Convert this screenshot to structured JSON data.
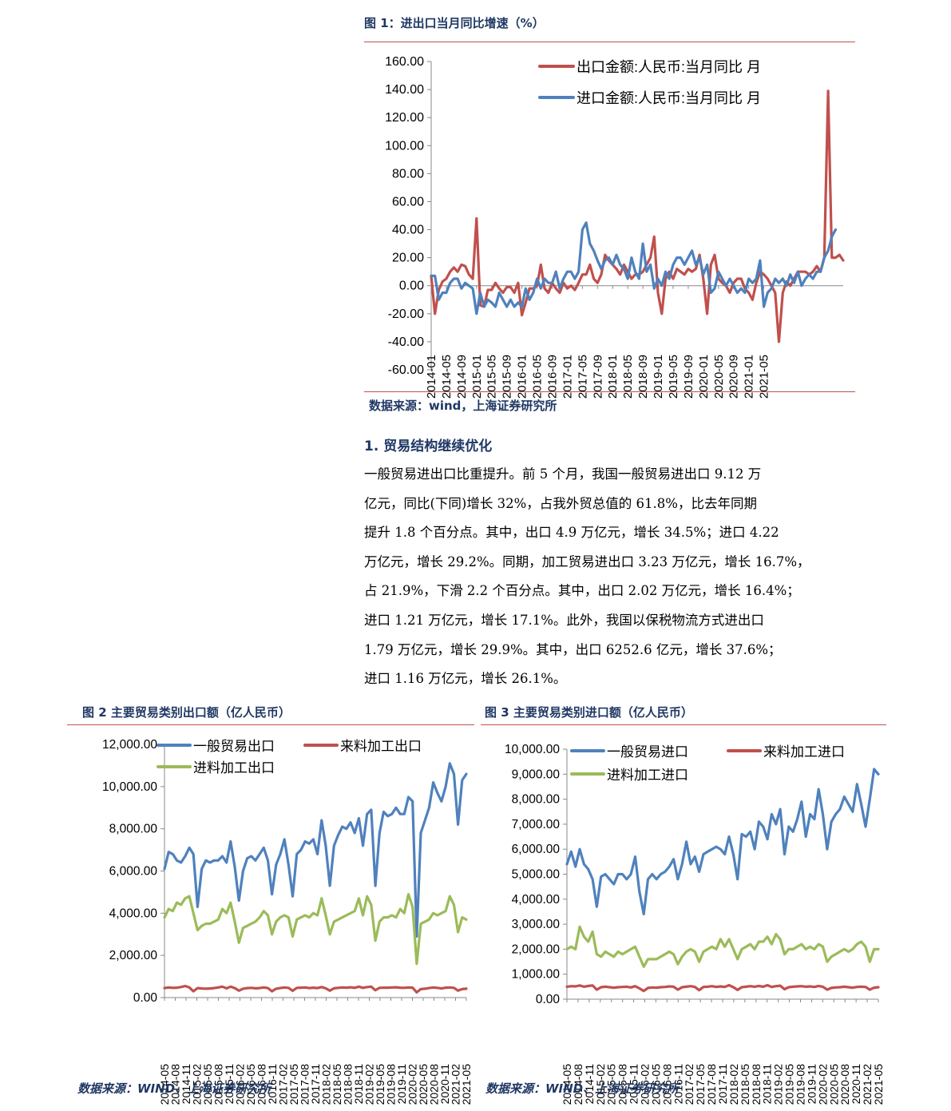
{
  "figure1": {
    "title": "图 1：进出口当月同比增速（%）",
    "source": "数据来源：wind，上海证券研究所"
  },
  "section": {
    "heading": "1. 贸易结构继续优化",
    "paragraph_lines": [
      "一般贸易进出口比重提升。前 5 个月，我国一般贸易进出口 9.12 万",
      "亿元，同比(下同)增长 32%，占我外贸总值的 61.8%，比去年同期",
      "提升 1.8 个百分点。其中，出口 4.9 万亿元，增长 34.5%；进口 4.22",
      "万亿元，增长 29.2%。同期，加工贸易进出口 3.23 万亿元，增长 16.7%，",
      "占 21.9%，下滑 2.2 个百分点。其中，出口 2.02 万亿元，增长 16.4%；",
      "进口 1.21 万亿元，增长 17.1%。此外，我国以保税物流方式进出口",
      "1.79 万亿元，增长 29.9%。其中，出口 6252.6 亿元，增长 37.6%；",
      "进口 1.16 万亿元，增长 26.1%。"
    ]
  },
  "figure2": {
    "title": "图 2 主要贸易类别出口额（亿人民币）",
    "source": "数据来源：WIND、上海证券研究所"
  },
  "figure3": {
    "title": "图 3 主要贸易类别进口额（亿人民币）",
    "source": "数据来源：WIND、上海证券研究所"
  },
  "chart_data": [
    {
      "id": "fig1",
      "type": "line",
      "ylim": [
        -60,
        160
      ],
      "y_ticks": [
        "160.00",
        "140.00",
        "120.00",
        "100.00",
        "80.00",
        "60.00",
        "40.00",
        "20.00",
        "0.00",
        "-20.00",
        "-40.00",
        "-60.00"
      ],
      "x_tick_labels": [
        "2014-01",
        "2014-05",
        "2014-09",
        "2015-01",
        "2015-05",
        "2015-09",
        "2016-01",
        "2016-05",
        "2016-09",
        "2017-01",
        "2017-05",
        "2017-09",
        "2018-01",
        "2018-05",
        "2018-09",
        "2019-01",
        "2019-05",
        "2019-09",
        "2020-01",
        "2020-05",
        "2020-09",
        "2021-01",
        "2021-05"
      ],
      "x_start": "2014-01",
      "legend_position": "top-right",
      "series": [
        {
          "name": "出口金额:人民币:当月同比 月",
          "color": "#c0504d",
          "values": [
            7,
            -20,
            -3,
            3,
            5,
            10,
            13,
            10,
            15,
            14,
            8,
            5,
            48,
            -14,
            -15,
            -3,
            -3,
            2,
            -2,
            -5,
            -1,
            -1,
            -5,
            2,
            -21,
            -12,
            -2,
            -2,
            0,
            15,
            -2,
            -5,
            2,
            -2,
            -5,
            2,
            -2,
            0,
            -3,
            2,
            8,
            8,
            15,
            5,
            2,
            8,
            22,
            18,
            15,
            12,
            8,
            15,
            10,
            5,
            8,
            8,
            10,
            15,
            20,
            35,
            -5,
            -20,
            5,
            10,
            5,
            12,
            10,
            8,
            12,
            10,
            12,
            22,
            5,
            -20,
            15,
            22,
            5,
            2,
            0,
            -5,
            2,
            5,
            5,
            -2,
            -5,
            -10,
            2,
            10,
            8,
            5,
            0,
            -5,
            -40,
            -5,
            3,
            0,
            5,
            10,
            10,
            10,
            8,
            10,
            14,
            10,
            20,
            139,
            20,
            20,
            22,
            18
          ]
        },
        {
          "name": "进口金额:人民币:当月同比 月",
          "color": "#4f81bd",
          "values": [
            7,
            7,
            -10,
            -5,
            -5,
            2,
            5,
            5,
            -2,
            2,
            0,
            -2,
            -20,
            -5,
            -15,
            -10,
            -12,
            -15,
            -5,
            -10,
            -15,
            -10,
            -15,
            -12,
            -15,
            -2,
            -10,
            -5,
            5,
            -2,
            5,
            2,
            2,
            10,
            -2,
            5,
            10,
            10,
            5,
            10,
            40,
            45,
            30,
            25,
            18,
            12,
            18,
            20,
            15,
            22,
            15,
            12,
            5,
            20,
            10,
            5,
            30,
            10,
            15,
            -2,
            5,
            0,
            10,
            5,
            15,
            20,
            20,
            15,
            20,
            25,
            15,
            20,
            8,
            15,
            -5,
            -2,
            10,
            5,
            0,
            5,
            0,
            -5,
            -2,
            -5,
            5,
            2,
            5,
            18,
            -15,
            -5,
            -2,
            5,
            2,
            5,
            0,
            8,
            2,
            10,
            0,
            5,
            8,
            5,
            10,
            10,
            20,
            25,
            35,
            40
          ]
        }
      ]
    },
    {
      "id": "fig2",
      "type": "line",
      "ylim": [
        0,
        12000
      ],
      "y_ticks": [
        "12,000.00",
        "10,000.00",
        "8,000.00",
        "6,000.00",
        "4,000.00",
        "2,000.00",
        "0.00"
      ],
      "x_tick_labels": [
        "2014-05",
        "2014-08",
        "2014-11",
        "2015-02",
        "2015-05",
        "2015-08",
        "2015-11",
        "2016-02",
        "2016-05",
        "2016-08",
        "2016-11",
        "2017-02",
        "2017-05",
        "2017-08",
        "2017-11",
        "2018-02",
        "2018-05",
        "2018-08",
        "2018-11",
        "2019-02",
        "2019-05",
        "2019-08",
        "2019-11",
        "2020-02",
        "2020-05",
        "2020-08",
        "2020-11",
        "2021-02",
        "2021-05"
      ],
      "legend_position": "top",
      "series": [
        {
          "name": "一般贸易出口",
          "color": "#4f81bd",
          "values": [
            6100,
            6900,
            6800,
            6500,
            6400,
            6700,
            7100,
            6800,
            4300,
            6100,
            6500,
            6400,
            6500,
            6500,
            6700,
            6400,
            7400,
            6200,
            4600,
            6000,
            6600,
            6700,
            6500,
            6800,
            7100,
            6500,
            4900,
            6300,
            6800,
            7500,
            6300,
            4800,
            6800,
            7000,
            7400,
            7300,
            7500,
            6800,
            8400,
            7200,
            5300,
            7200,
            7700,
            8100,
            8000,
            8300,
            7800,
            8500,
            7200,
            8700,
            8900,
            5300,
            7800,
            8800,
            8600,
            8700,
            9000,
            8700,
            8700,
            9500,
            9300,
            2900,
            7800,
            8400,
            9000,
            10200,
            9700,
            9300,
            10000,
            11100,
            10600,
            8200,
            10300,
            10600
          ]
        },
        {
          "name": "来料加工出口",
          "color": "#c0504d",
          "values": [
            450,
            480,
            460,
            470,
            500,
            550,
            480,
            300,
            450,
            430,
            420,
            430,
            450,
            480,
            520,
            440,
            520,
            450,
            330,
            420,
            450,
            460,
            440,
            450,
            480,
            450,
            300,
            420,
            450,
            480,
            460,
            320,
            460,
            470,
            480,
            450,
            470,
            450,
            500,
            440,
            330,
            440,
            460,
            480,
            470,
            490,
            460,
            520,
            460,
            500,
            520,
            350,
            460,
            470,
            470,
            480,
            490,
            470,
            460,
            480,
            470,
            250,
            400,
            420,
            450,
            480,
            460,
            430,
            470,
            480,
            460,
            330,
            400,
            420
          ]
        },
        {
          "name": "进料加工出口",
          "color": "#9bbb59",
          "values": [
            3800,
            4200,
            4100,
            4500,
            4400,
            4700,
            4800,
            4000,
            3200,
            3400,
            3500,
            3500,
            3600,
            3700,
            4200,
            4000,
            4500,
            3600,
            2600,
            3300,
            3400,
            3500,
            3600,
            3800,
            4100,
            3900,
            3000,
            3600,
            3800,
            3900,
            3800,
            2900,
            3700,
            3800,
            3900,
            3800,
            4000,
            3900,
            4700,
            3900,
            3000,
            3600,
            3700,
            3800,
            3900,
            4000,
            4100,
            4700,
            3900,
            4800,
            4400,
            2700,
            3600,
            3800,
            3800,
            3900,
            3800,
            4200,
            4000,
            4900,
            4300,
            1600,
            3500,
            3600,
            3700,
            4000,
            3900,
            4000,
            4100,
            4800,
            4400,
            3100,
            3800,
            3700
          ]
        }
      ]
    },
    {
      "id": "fig3",
      "type": "line",
      "ylim": [
        0,
        10000
      ],
      "y_ticks": [
        "10,000.00",
        "9,000.00",
        "8,000.00",
        "7,000.00",
        "6,000.00",
        "5,000.00",
        "4,000.00",
        "3,000.00",
        "2,000.00",
        "1,000.00",
        "0.00"
      ],
      "x_tick_labels": [
        "2014-05",
        "2014-08",
        "2014-11",
        "2015-02",
        "2015-05",
        "2015-08",
        "2015-11",
        "2016-02",
        "2016-05",
        "2016-08",
        "2016-11",
        "2017-02",
        "2017-05",
        "2017-08",
        "2017-11",
        "2018-02",
        "2018-05",
        "2018-08",
        "2018-11",
        "2019-02",
        "2019-05",
        "2019-08",
        "2019-11",
        "2020-02",
        "2020-05",
        "2020-08",
        "2020-11",
        "2021-02",
        "2021-05"
      ],
      "legend_position": "top",
      "series": [
        {
          "name": "一般贸易进口",
          "color": "#4f81bd",
          "values": [
            5400,
            5900,
            5300,
            6000,
            5400,
            5200,
            4800,
            3700,
            4900,
            5000,
            4800,
            4600,
            5000,
            5000,
            4800,
            5000,
            5700,
            4300,
            3400,
            4800,
            5000,
            4800,
            5000,
            5100,
            5300,
            5600,
            4800,
            5400,
            6300,
            5400,
            5700,
            5100,
            5800,
            5900,
            6000,
            6100,
            6000,
            5800,
            6500,
            5800,
            4800,
            6600,
            6500,
            6700,
            6000,
            7100,
            6900,
            6400,
            7400,
            7000,
            7600,
            5800,
            6900,
            6700,
            7200,
            7900,
            6500,
            7400,
            7200,
            8400,
            7400,
            6000,
            7100,
            7400,
            7600,
            8100,
            7800,
            7500,
            8600,
            7800,
            6900,
            8000,
            9200,
            9000
          ]
        },
        {
          "name": "来料加工进口",
          "color": "#c0504d",
          "values": [
            500,
            520,
            510,
            550,
            500,
            530,
            550,
            380,
            480,
            500,
            480,
            460,
            480,
            490,
            500,
            470,
            520,
            430,
            330,
            450,
            470,
            460,
            480,
            490,
            510,
            500,
            380,
            480,
            500,
            520,
            490,
            360,
            490,
            500,
            520,
            490,
            510,
            490,
            560,
            480,
            370,
            480,
            500,
            520,
            500,
            530,
            500,
            560,
            490,
            520,
            540,
            400,
            480,
            500,
            510,
            520,
            500,
            510,
            490,
            530,
            500,
            380,
            450,
            470,
            480,
            500,
            480,
            460,
            490,
            500,
            490,
            380,
            460,
            480
          ]
        },
        {
          "name": "进料加工进口",
          "color": "#9bbb59",
          "values": [
            2000,
            2100,
            2000,
            2900,
            2500,
            2300,
            2700,
            1800,
            1700,
            1900,
            1800,
            1700,
            1900,
            1800,
            1900,
            2000,
            2100,
            1700,
            1300,
            1600,
            1600,
            1600,
            1700,
            1800,
            1900,
            1800,
            1400,
            1700,
            1900,
            2000,
            1900,
            1500,
            1900,
            2000,
            2100,
            2000,
            2400,
            2100,
            2400,
            2000,
            1600,
            2000,
            2100,
            2200,
            2000,
            2300,
            2300,
            2500,
            2200,
            2600,
            2400,
            1800,
            2000,
            2000,
            2100,
            2200,
            2000,
            2100,
            2000,
            2200,
            2100,
            1500,
            1700,
            1800,
            1900,
            2000,
            1900,
            2000,
            2200,
            2300,
            2100,
            1500,
            2000,
            2000
          ]
        }
      ]
    }
  ]
}
